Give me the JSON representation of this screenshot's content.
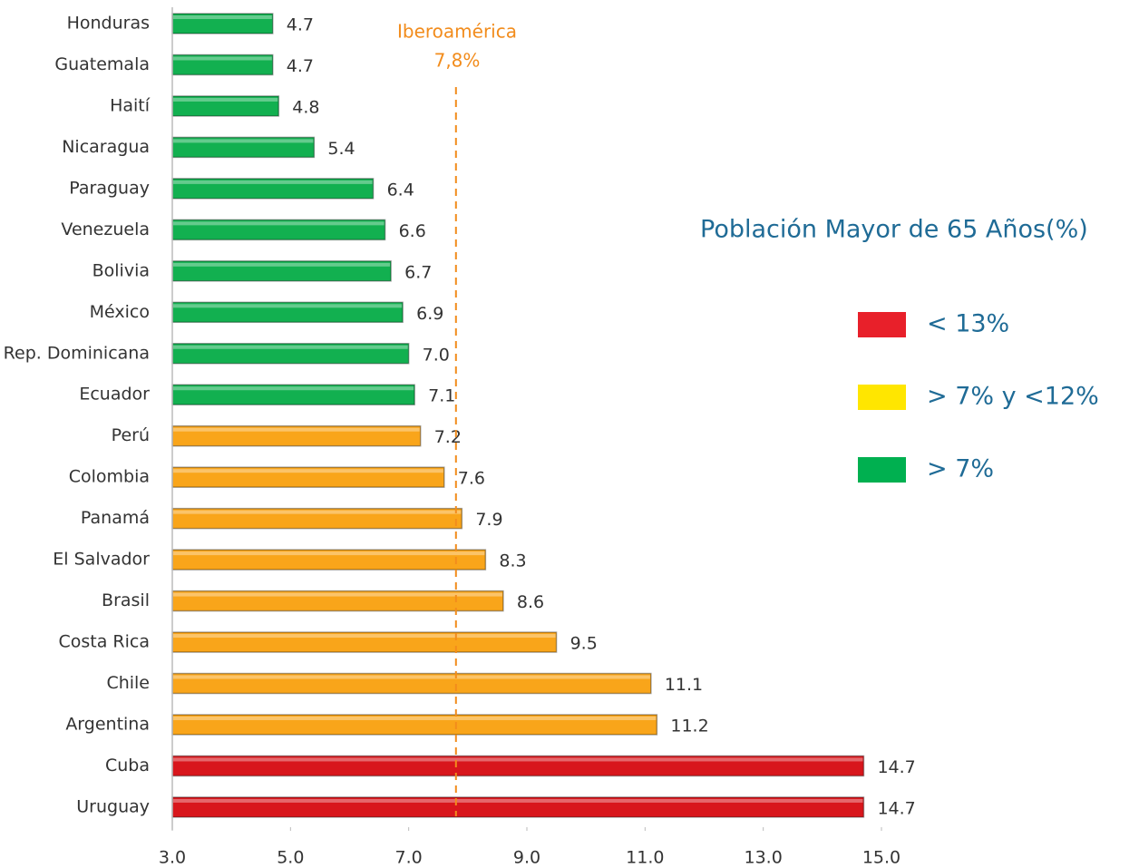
{
  "chart_data": {
    "type": "bar",
    "orientation": "horizontal",
    "categories": [
      "Honduras",
      "Guatemala",
      "Haití",
      "Nicaragua",
      "Paraguay",
      "Venezuela",
      "Bolivia",
      "México",
      "Rep. Dominicana",
      "Ecuador",
      "Perú",
      "Colombia",
      "Panamá",
      "El Salvador",
      "Brasil",
      "Costa Rica",
      "Chile",
      "Argentina",
      "Cuba",
      "Uruguay"
    ],
    "values": [
      4.7,
      4.7,
      4.8,
      5.4,
      6.4,
      6.6,
      6.7,
      6.9,
      7.0,
      7.1,
      7.2,
      7.6,
      7.9,
      8.3,
      8.6,
      9.5,
      11.1,
      11.2,
      14.7,
      14.7
    ],
    "value_labels": [
      "4.7",
      "4.7",
      "4.8",
      "5.4",
      "6.4",
      "6.6",
      "6.7",
      "6.9",
      "7.0",
      "7.1",
      "7.2",
      "7.6",
      "7.9",
      "8.3",
      "8.6",
      "9.5",
      "11.1",
      "11.2",
      "14.7",
      "14.7"
    ],
    "colors": [
      "#12b050",
      "#12b050",
      "#12b050",
      "#12b050",
      "#12b050",
      "#12b050",
      "#12b050",
      "#12b050",
      "#12b050",
      "#12b050",
      "#f9a51a",
      "#f9a51a",
      "#f9a51a",
      "#f9a51a",
      "#f9a51a",
      "#f9a51a",
      "#f9a51a",
      "#f9a51a",
      "#d8161c",
      "#d8161c"
    ],
    "xlim": [
      3,
      15
    ],
    "xticks": [
      {
        "value": 3,
        "label": "3.0"
      },
      {
        "value": 5,
        "label": "5.0"
      },
      {
        "value": 7,
        "label": "7.0"
      },
      {
        "value": 9,
        "label": "9.0"
      },
      {
        "value": 11,
        "label": "11.0"
      },
      {
        "value": 13,
        "label": "13.0"
      },
      {
        "value": 15,
        "label": "15.0"
      }
    ],
    "reference_line": {
      "text": "Iberoamérica",
      "value": 7.8,
      "label": "7,8%",
      "color": "#f28c1c"
    },
    "legend": {
      "title": "Población Mayor de 65 Años(%)",
      "items": [
        {
          "label": "< 13%",
          "color": "#e8202a"
        },
        {
          "label": "> 7% y <12%",
          "color": "#ffe600"
        },
        {
          "label": "> 7%",
          "color": "#00b050"
        }
      ]
    }
  }
}
